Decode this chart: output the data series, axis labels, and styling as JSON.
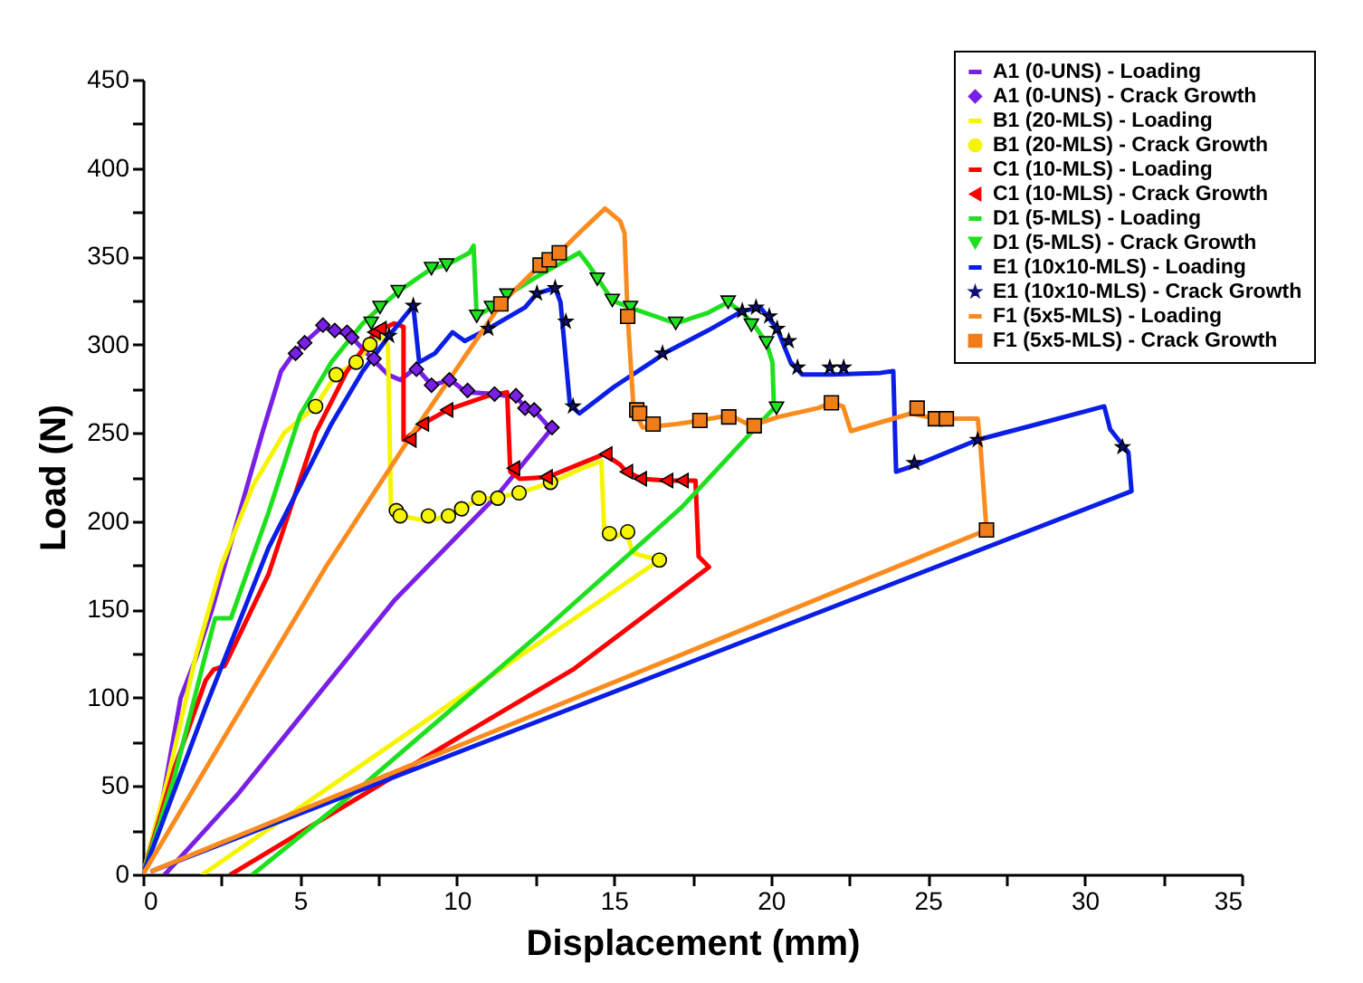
{
  "chart_data": {
    "type": "line",
    "xlabel": "Displacement (mm)",
    "ylabel": "Load (N)",
    "xlim": [
      0,
      35
    ],
    "ylim": [
      0,
      450
    ],
    "xticks": [
      0,
      {
        "value": 2.5,
        "label": null
      },
      5,
      {
        "value": 7.5,
        "label": null
      },
      10,
      {
        "value": 12.5,
        "label": null
      },
      15,
      {
        "value": 17.5,
        "label": null
      },
      20,
      {
        "value": 22.5,
        "label": null
      },
      25,
      {
        "value": 27.5,
        "label": null
      },
      30,
      {
        "value": 32.5,
        "label": null
      },
      35
    ],
    "yticks": [
      0,
      {
        "value": 25,
        "label": null
      },
      50,
      {
        "value": 75,
        "label": null
      },
      100,
      {
        "value": 125,
        "label": null
      },
      150,
      {
        "value": 175,
        "label": null
      },
      200,
      {
        "value": 225,
        "label": null
      },
      250,
      {
        "value": 275,
        "label": null
      },
      300,
      {
        "value": 325,
        "label": null
      },
      350,
      {
        "value": 375,
        "label": null
      },
      400,
      {
        "value": 425,
        "label": null
      },
      450
    ],
    "grid": false,
    "legend": "top right",
    "series": [
      {
        "name": "A1 (0-UNS) - Loading",
        "type": "line",
        "color": "#7a1fe6",
        "x": [
          0,
          0.6,
          1.2,
          1.7,
          2.2,
          3,
          3.8,
          4.4,
          4.8,
          5.2,
          5.7,
          6.1,
          6.6,
          7.3,
          7.8,
          8.2,
          8.7,
          9.2,
          9.8,
          10.3,
          11.2,
          11.9,
          12.2,
          12.5,
          13,
          11.3,
          8,
          5.5,
          3,
          0.7
        ],
        "values": [
          0,
          40,
          100,
          123,
          150,
          200,
          250,
          285,
          295,
          302,
          310,
          308,
          305,
          292,
          283,
          280,
          287,
          277,
          280,
          273,
          272,
          270,
          264,
          262,
          252,
          215,
          155,
          100,
          45,
          0
        ]
      },
      {
        "name": "A1 (0-UNS) - Crack Growth",
        "type": "scatter",
        "marker": "diamond",
        "color": "#7a1fe6",
        "x": [
          4.86,
          5.15,
          5.73,
          6.11,
          6.5,
          6.65,
          7.36,
          8.71,
          9.19,
          9.76,
          10.34,
          11.2,
          11.88,
          12.17,
          12.46,
          13.03
        ],
        "values": [
          295,
          301,
          311,
          308,
          307,
          304,
          292,
          286,
          277,
          280,
          274,
          272,
          271,
          264,
          263,
          253
        ]
      },
      {
        "name": "B1 (20-MLS) - Loading",
        "type": "line",
        "color": "#f5f500",
        "x": [
          0,
          0.8,
          1.7,
          2.5,
          3.5,
          4.5,
          5.5,
          6.15,
          6.8,
          7.23,
          7.6,
          7.8,
          7.9,
          8.2,
          9.1,
          9.7,
          10.2,
          10.7,
          11.2,
          12,
          13,
          14,
          14.6,
          14.7,
          15,
          15.4,
          15.6,
          16,
          16.45,
          1.9
        ],
        "values": [
          0,
          55,
          125,
          175,
          220,
          250,
          265,
          283,
          290,
          300,
          304,
          300,
          207,
          203,
          200,
          203,
          207,
          213,
          213,
          216,
          222,
          230,
          234,
          192,
          191,
          194,
          182,
          180,
          178,
          0
        ]
      },
      {
        "name": "B1 (20-MLS) - Crack Growth",
        "type": "scatter",
        "marker": "circle",
        "color": "#f5f500",
        "x": [
          5.5,
          6.15,
          6.79,
          7.23,
          8.07,
          8.19,
          9.09,
          9.73,
          10.15,
          10.7,
          11.3,
          11.98,
          12.98,
          14.86,
          15.44,
          16.45
        ],
        "values": [
          265,
          283,
          290,
          300,
          206,
          203,
          203,
          203,
          207,
          213,
          213,
          216,
          222,
          193,
          194,
          178
        ]
      },
      {
        "name": "C1 (10-MLS) - Loading",
        "type": "line",
        "color": "#ff0000",
        "x": [
          0,
          1,
          2,
          2.25,
          2.6,
          4,
          5.5,
          6.5,
          7.4,
          8,
          8.3,
          8.3,
          8.6,
          9,
          9.7,
          10.5,
          11,
          11.6,
          11.7,
          12,
          12.9,
          14,
          14.7,
          15.2,
          15.4,
          15.9,
          16.7,
          17.2,
          17.6,
          17.7,
          18.03,
          13.7,
          10,
          2.8
        ],
        "values": [
          0,
          60,
          110,
          116,
          118,
          170,
          250,
          285,
          307,
          312,
          310,
          246,
          250,
          256,
          263,
          268,
          271,
          273,
          228,
          224,
          225,
          233,
          238,
          232,
          228,
          224,
          223,
          223,
          223,
          180,
          174,
          116,
          77,
          0
        ]
      },
      {
        "name": "C1 (10-MLS) - Crack Growth",
        "type": "scatter",
        "marker": "triangle-left",
        "color": "#ff0000",
        "x": [
          7.36,
          7.55,
          8.5,
          8.9,
          9.67,
          11.8,
          12.84,
          14.74,
          15.4,
          15.84,
          16.68,
          17.17
        ],
        "values": [
          307,
          309,
          246,
          255,
          263,
          230,
          225,
          238,
          228,
          224,
          223,
          223
        ]
      },
      {
        "name": "D1 (5-MLS) - Loading",
        "type": "line",
        "color": "#1fe01f",
        "x": [
          0,
          1,
          2,
          2.3,
          2.8,
          4,
          5,
          6,
          7,
          7.55,
          8.13,
          9.19,
          9.67,
          10.4,
          10.53,
          10.63,
          11.1,
          11.6,
          12.5,
          13.3,
          13.9,
          14.2,
          14.5,
          14.95,
          15.5,
          16.97,
          18,
          18.64,
          19.1,
          19.47,
          19.86,
          20.05,
          20.1,
          17.17,
          12.75,
          6.98,
          3.5
        ],
        "values": [
          0,
          55,
          125,
          145,
          145,
          205,
          260,
          290,
          312,
          321,
          330,
          343,
          345,
          352,
          356,
          316,
          321,
          328,
          338,
          346,
          352,
          345,
          337,
          325,
          321,
          312,
          318,
          324,
          318,
          311,
          301,
          290,
          264,
          208,
          138,
          50,
          0
        ]
      },
      {
        "name": "D1 (5-MLS) - Crack Growth",
        "type": "scatter",
        "marker": "triangle-down",
        "color": "#1fe01f",
        "x": [
          7.27,
          7.55,
          8.13,
          9.19,
          9.67,
          10.63,
          11.1,
          11.59,
          14.47,
          14.95,
          15.53,
          16.97,
          18.64,
          19.38,
          19.86,
          20.18
        ],
        "values": [
          312,
          321,
          330,
          343,
          345,
          316,
          321,
          328,
          337,
          325,
          321,
          312,
          324,
          311,
          301,
          264
        ]
      },
      {
        "name": "E1 (10x10-MLS) - Loading",
        "type": "line",
        "color": "#0a1ee6",
        "x": [
          0,
          2,
          4,
          6,
          7,
          7.84,
          8.61,
          8.8,
          9.3,
          9.86,
          10.25,
          11,
          12.17,
          12.55,
          13.13,
          13.3,
          13.6,
          13.9,
          15,
          16.2,
          16.59,
          18,
          19.09,
          19.67,
          20.2,
          20.63,
          21,
          21.97,
          23.5,
          23.9,
          23.99,
          24.66,
          26.58,
          28.5,
          30.62,
          30.81,
          31.39,
          31.49,
          0.3
        ],
        "values": [
          0,
          95,
          185,
          255,
          285,
          305,
          322,
          290,
          295,
          307,
          302,
          309,
          321,
          329,
          332,
          324,
          266,
          261,
          276,
          290,
          295,
          308,
          319,
          321,
          309,
          290,
          283,
          283,
          284,
          285,
          228,
          232,
          246,
          255,
          265,
          252,
          239,
          217,
          2
        ]
      },
      {
        "name": "E1 (10x10-MLS) - Crack Growth",
        "type": "scatter",
        "marker": "star",
        "color": "#10107a",
        "x": [
          7.84,
          8.61,
          11,
          12.55,
          13.13,
          13.47,
          13.7,
          16.55,
          19.09,
          19.53,
          19.95,
          20.2,
          20.57,
          20.85,
          21.88,
          22.32,
          24.57,
          26.59,
          31.2
        ],
        "values": [
          305,
          322,
          309,
          329,
          332,
          313,
          265,
          295,
          319,
          321,
          316,
          309,
          302,
          287,
          287,
          287,
          233,
          246,
          242
        ]
      },
      {
        "name": "F1 (5x5-MLS) - Loading",
        "type": "line",
        "color": "#fb8b1d",
        "x": [
          0,
          2.5,
          5.82,
          8.71,
          11.4,
          12.65,
          13.26,
          14,
          14.72,
          15.2,
          15.34,
          15.44,
          15.63,
          15.92,
          17,
          17.74,
          18.7,
          19.38,
          20.24,
          21.5,
          21.93,
          22.3,
          22.55,
          23.5,
          24.47,
          25.24,
          26.59,
          26.68,
          26.87,
          0.3
        ],
        "values": [
          0,
          75,
          174,
          253,
          323,
          345,
          352,
          365,
          377,
          370,
          363,
          316,
          263,
          253,
          255,
          257,
          260,
          254,
          259,
          264,
          267,
          265,
          251,
          256,
          261,
          258,
          258,
          242,
          195,
          2
        ]
      },
      {
        "name": "F1 (5x5-MLS) - Crack Growth",
        "type": "scatter",
        "marker": "square",
        "color": "#f07d1a",
        "x": [
          11.4,
          12.65,
          12.94,
          13.26,
          15.44,
          15.73,
          15.82,
          16.25,
          17.74,
          18.66,
          19.47,
          21.93,
          24.66,
          25.24,
          25.59,
          26.87
        ],
        "values": [
          323,
          345,
          348,
          352,
          316,
          263,
          261,
          255,
          257,
          259,
          254,
          267,
          264,
          258,
          258,
          195
        ]
      }
    ]
  }
}
